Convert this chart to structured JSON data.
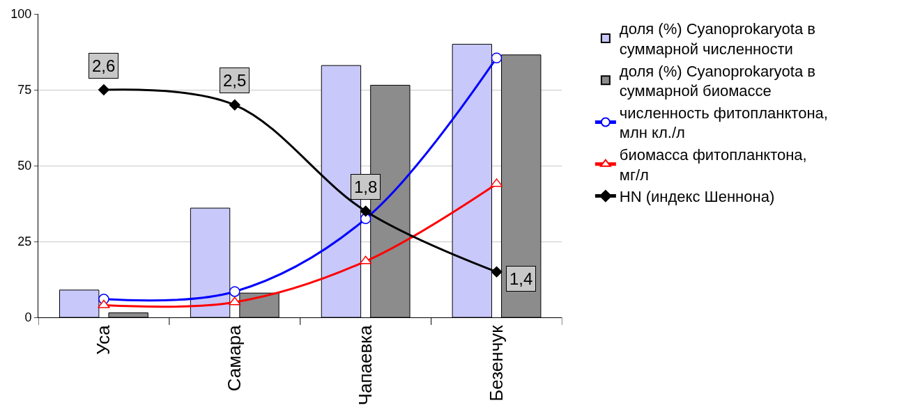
{
  "chart_data": {
    "type": "bar",
    "categories": [
      "Уса",
      "Самара",
      "Чапаевка",
      "Безенчук"
    ],
    "series": [
      {
        "name": "доля (%) Cyanoprokaryota в суммарной численности",
        "color": "#c8c8fa",
        "values": [
          9,
          36,
          83,
          90
        ]
      },
      {
        "name": "доля (%) Cyanoprokaryota в суммарной биомассе",
        "color": "#8c8c8c",
        "values": [
          1.5,
          8,
          76.5,
          86.5
        ]
      },
      {
        "name": "численность фитопланктона, млн кл./л",
        "type": "line",
        "color": "#0000ff",
        "marker": "circle",
        "values": [
          6,
          8.5,
          32.5,
          85.5
        ]
      },
      {
        "name": "биомасса фитопланктона, мг/л",
        "type": "line",
        "color": "#ff0000",
        "marker": "triangle",
        "values": [
          4,
          5,
          18.5,
          44
        ]
      },
      {
        "name": "HN (индекс Шеннона)",
        "type": "line",
        "color": "#000000",
        "marker": "diamond",
        "axis": "y2",
        "values": [
          2.6,
          2.5,
          1.8,
          1.4
        ],
        "value_labels": [
          "2,6",
          "2,5",
          "1,8",
          "1,4"
        ]
      }
    ],
    "ylim": [
      0,
      100
    ],
    "yticks": [
      0,
      25,
      50,
      75,
      100
    ],
    "y2lim": [
      1.1,
      3.1
    ],
    "grid": "y",
    "legend": "right"
  }
}
